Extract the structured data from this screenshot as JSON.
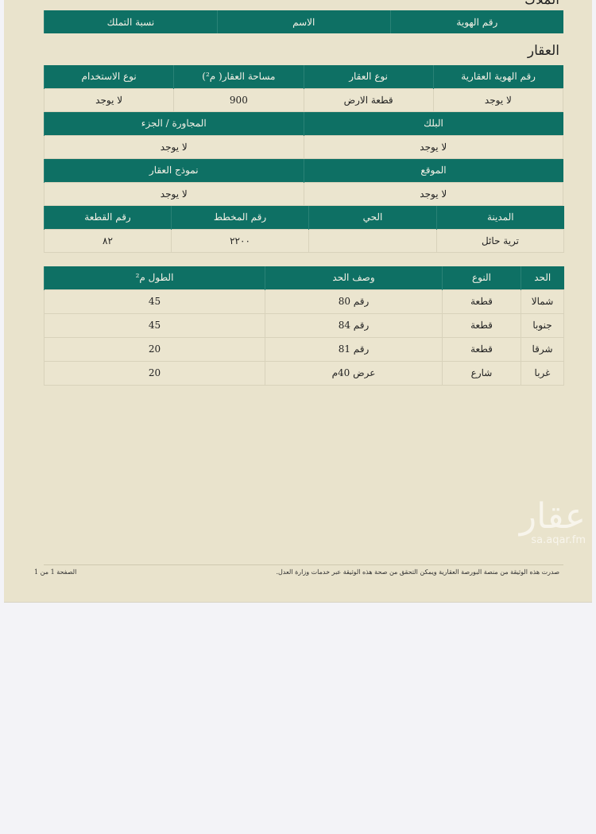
{
  "owners": {
    "title": "الملاك",
    "headers": [
      "رقم الهوية",
      "الاسم",
      "نسبة التملك"
    ]
  },
  "property": {
    "title": "العقار",
    "t1": {
      "headers": [
        "رقم الهوية العقارية",
        "نوع العقار",
        "مساحة العقار( م²)",
        "نوع الاستخدام"
      ],
      "values": [
        "لا يوجد",
        "قطعة الارض",
        "900",
        "لا يوجد"
      ]
    },
    "t2": {
      "headers": [
        "البلك",
        "المجاورة / الجزء"
      ],
      "values": [
        "لا يوجد",
        "لا يوجد"
      ]
    },
    "t3": {
      "headers": [
        "الموقع",
        "نموذج العقار"
      ],
      "values": [
        "لا يوجد",
        "لا يوجد"
      ]
    },
    "t4": {
      "headers": [
        "المدينة",
        "الحي",
        "رقم المخطط",
        "رقم القطعة"
      ],
      "values": [
        "ترية حائل",
        "",
        "٢٢٠٠",
        "٨٢"
      ]
    }
  },
  "boundaries": {
    "headers": [
      "الحد",
      "النوع",
      "وصف الحد",
      "الطول م²"
    ],
    "rows": [
      [
        "شمالا",
        "قطعة",
        "رقم 80",
        "45"
      ],
      [
        "جنوبا",
        "قطعة",
        "رقم 84",
        "45"
      ],
      [
        "شرقا",
        "قطعة",
        "رقم 81",
        "20"
      ],
      [
        "غربا",
        "شارع",
        "عرض 40م",
        "20"
      ]
    ]
  },
  "footer": {
    "note": "صدرت هذه الوثيقة من منصة البورصة العقارية ويمكن التحقق من صحة هذه الوثيقة عبر خدمات وزارة العدل.",
    "page": "الصفحة 1 من 1"
  },
  "watermark": {
    "text": "عقار",
    "url": "sa.aqar.fm"
  },
  "colors": {
    "header": "#0e7064",
    "paper": "#e9e3cc"
  }
}
